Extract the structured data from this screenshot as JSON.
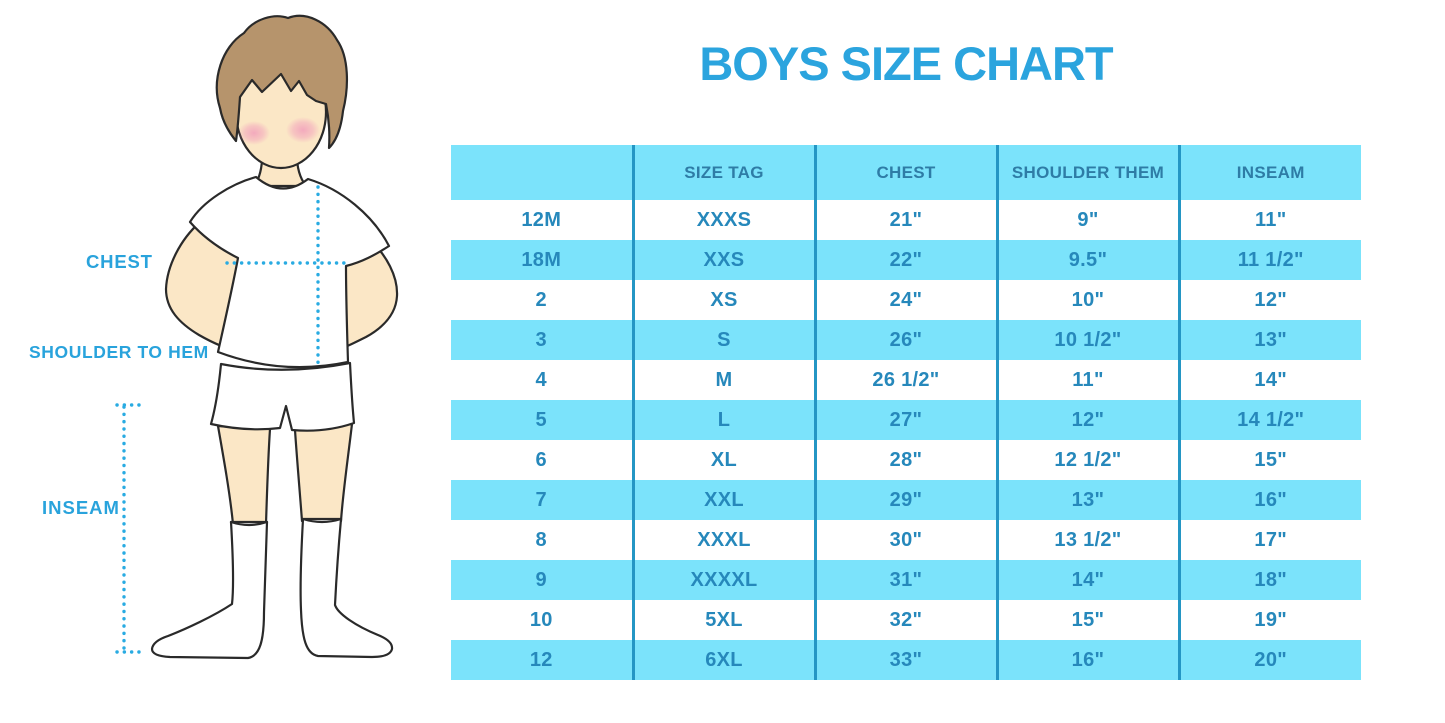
{
  "title": "BOYS SIZE CHART",
  "figure": {
    "description": "outline illustration of a boy in white t-shirt, shorts and knee socks with dotted measurement guides",
    "labels": {
      "chest": "CHEST",
      "shoulder_to_hem": "SHOULDER TO HEM",
      "inseam": "INSEAM"
    }
  },
  "chart_data": {
    "type": "table",
    "title": "BOYS SIZE CHART",
    "columns": [
      "",
      "SIZE TAG",
      "CHEST",
      "SHOULDER THEM",
      "INSEAM"
    ],
    "rows": [
      [
        "12M",
        "XXXS",
        "21\"",
        "9\"",
        "11\""
      ],
      [
        "18M",
        "XXS",
        "22\"",
        "9.5\"",
        "11 1/2\""
      ],
      [
        "2",
        "XS",
        "24\"",
        "10\"",
        "12\""
      ],
      [
        "3",
        "S",
        "26\"",
        "10 1/2\"",
        "13\""
      ],
      [
        "4",
        "M",
        "26 1/2\"",
        "11\"",
        "14\""
      ],
      [
        "5",
        "L",
        "27\"",
        "12\"",
        "14 1/2\""
      ],
      [
        "6",
        "XL",
        "28\"",
        "12 1/2\"",
        "15\""
      ],
      [
        "7",
        "XXL",
        "29\"",
        "13\"",
        "16\""
      ],
      [
        "8",
        "XXXL",
        "30\"",
        "13 1/2\"",
        "17\""
      ],
      [
        "9",
        "XXXXL",
        "31\"",
        "14\"",
        "18\""
      ],
      [
        "10",
        "5XL",
        "32\"",
        "15\"",
        "19\""
      ],
      [
        "12",
        "6XL",
        "33\"",
        "16\"",
        "20\""
      ]
    ],
    "stripe_pattern": "header cyan, then data rows alternate white/cyan starting white"
  },
  "colors": {
    "accent_blue": "#2BA4DE",
    "label_blue": "#29A3DC",
    "measure_blue": "#29ABE2",
    "stripe_cyan": "#7BE3FB",
    "divider_blue": "#2496C4",
    "header_text": "#2E7CA6",
    "cell_text": "#2688BB",
    "hair": "#B6946C",
    "skin": "#FBE7C6",
    "cheek": "#F2A3BC",
    "outline": "#2A2A2A"
  }
}
